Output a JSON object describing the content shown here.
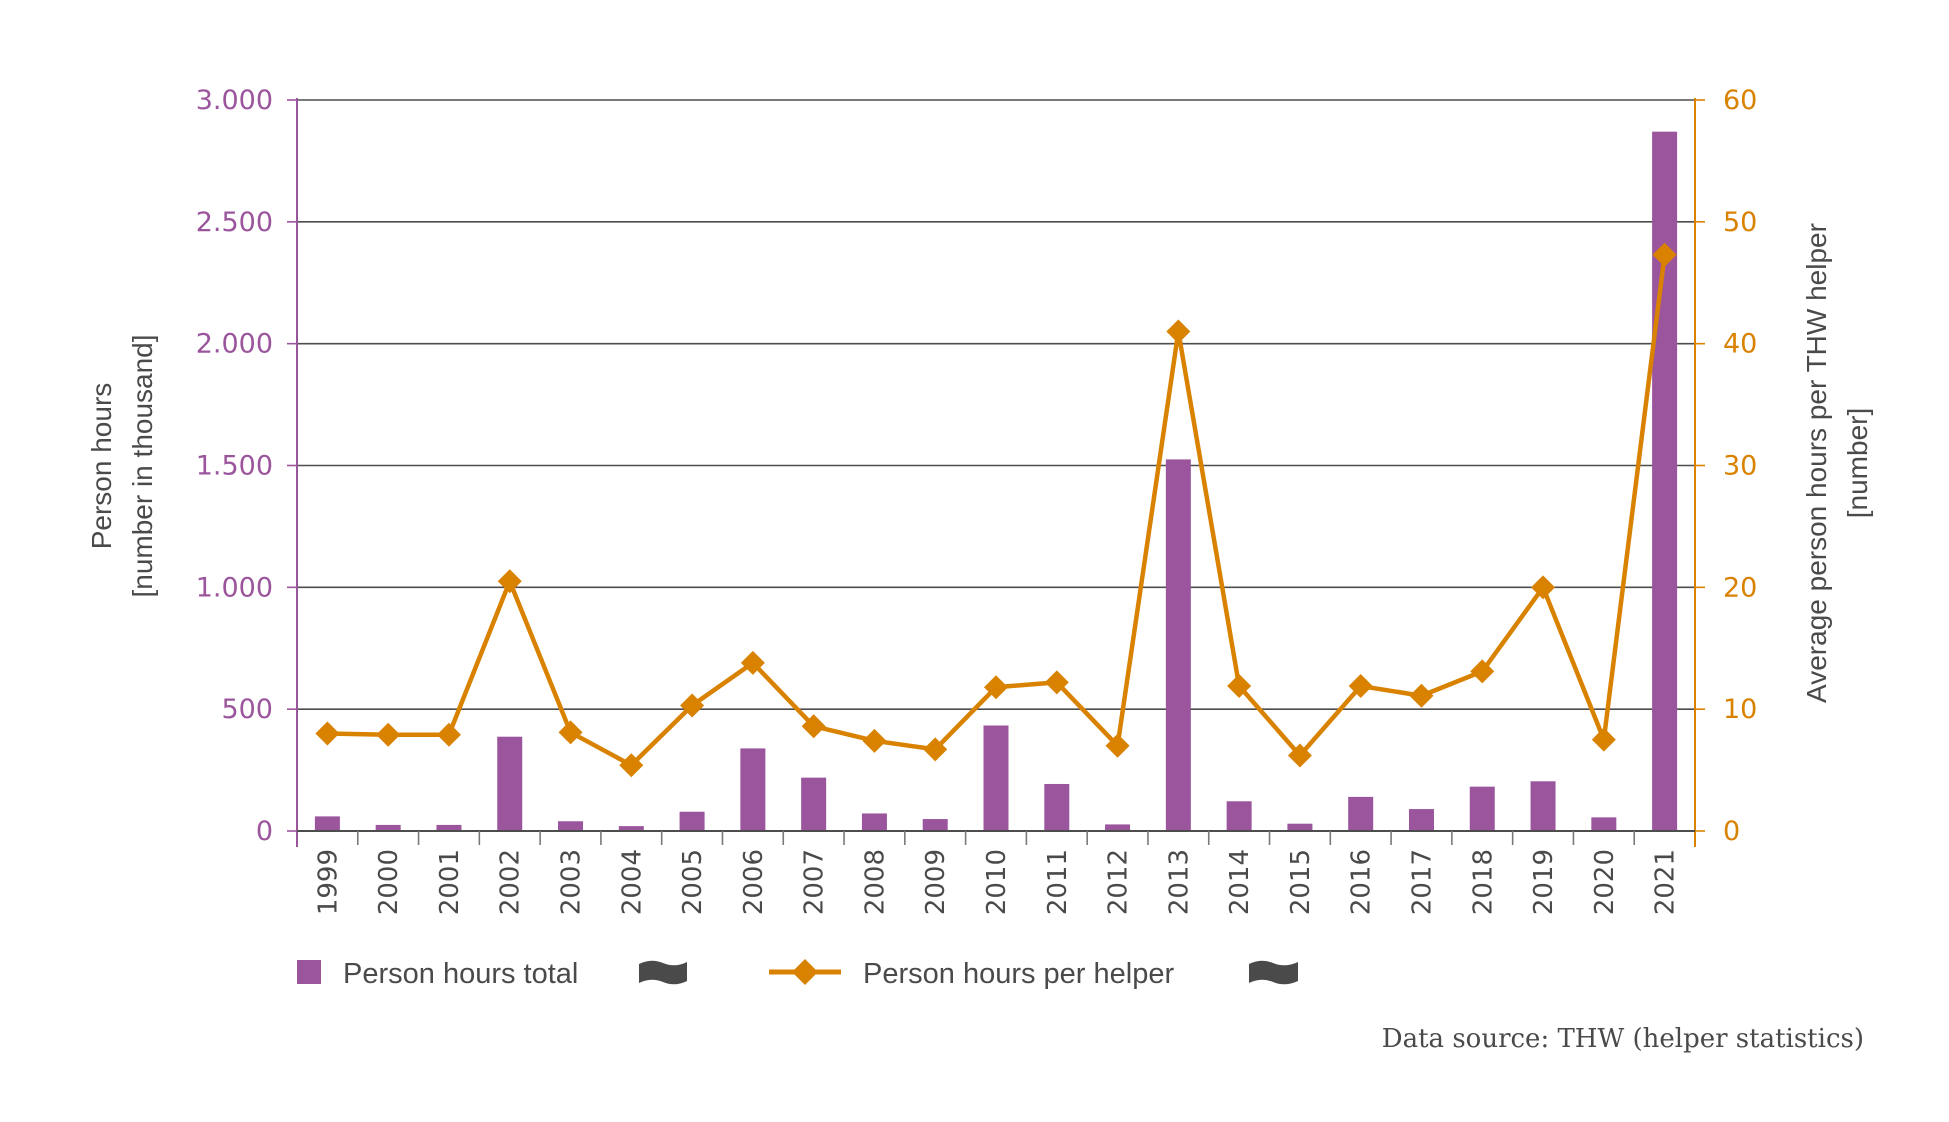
{
  "chart_data": {
    "type": "bar+line",
    "categories": [
      "1999",
      "2000",
      "2001",
      "2002",
      "2003",
      "2004",
      "2005",
      "2006",
      "2007",
      "2008",
      "2009",
      "2010",
      "2011",
      "2012",
      "2013",
      "2014",
      "2015",
      "2016",
      "2017",
      "2018",
      "2019",
      "2020",
      "2021"
    ],
    "series": [
      {
        "name": "Person hours total",
        "type": "bar",
        "axis": "left",
        "color": "#9b559d",
        "values": [
          60,
          25,
          25,
          387,
          40,
          20,
          79,
          339,
          219,
          72,
          49,
          433,
          193,
          27,
          1525,
          122,
          30,
          140,
          90,
          182,
          204,
          56,
          2870
        ]
      },
      {
        "name": "Person hours per helper",
        "type": "line",
        "marker": "diamond",
        "axis": "right",
        "color": "#d98200",
        "values": [
          8.0,
          7.9,
          7.9,
          20.5,
          8.1,
          5.4,
          10.3,
          13.8,
          8.6,
          7.4,
          6.7,
          11.8,
          12.2,
          7.0,
          41.0,
          11.9,
          6.2,
          11.9,
          11.1,
          13.1,
          20.0,
          7.5,
          47.3
        ]
      }
    ],
    "y_left": {
      "label_line1": "Person hours",
      "label_line2": "[number in thousand]",
      "range": [
        0,
        3000
      ],
      "ticks": [
        0,
        500,
        1000,
        1500,
        2000,
        2500,
        3000
      ],
      "tick_labels": [
        "0",
        "500",
        "1.000",
        "1.500",
        "2.000",
        "2.500",
        "3.000"
      ],
      "color": "#9b559d"
    },
    "y_right": {
      "label_line1": "Average person hours per THW helper",
      "label_line2": "[number]",
      "range": [
        0,
        60
      ],
      "ticks": [
        0,
        10,
        20,
        30,
        40,
        50,
        60
      ],
      "tick_labels": [
        "0",
        "10",
        "20",
        "30",
        "40",
        "50",
        "60"
      ],
      "color": "#d98200"
    },
    "grid": true,
    "legend": {
      "position": "bottom-left",
      "entries": [
        "Person hours total",
        "Person hours per helper"
      ]
    },
    "source": "Data source: THW (helper statistics)"
  },
  "colors": {
    "bar": "#9b559d",
    "line": "#d98200",
    "grid": "#4d4d4d",
    "text": "#4a4a4a",
    "legend_icon": "#4a4a4a"
  },
  "icons": {
    "legend_extra_1": "banner-icon",
    "legend_extra_2": "banner-icon"
  }
}
